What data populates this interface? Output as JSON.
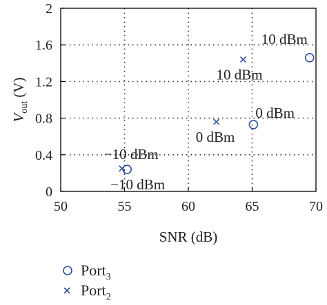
{
  "chart_data": {
    "type": "scatter",
    "xlabel": "SNR (dB)",
    "ylabel_main": "V",
    "ylabel_sub": "out",
    "ylabel_unit": " (V)",
    "xlim": [
      50,
      70
    ],
    "ylim": [
      0,
      2
    ],
    "xticks": [
      "50",
      "55",
      "60",
      "65",
      "70"
    ],
    "yticks": [
      "0",
      "0.4",
      "0.8",
      "1.2",
      "1.6",
      "2"
    ],
    "x_grid_values": [
      55,
      60,
      65
    ],
    "y_grid_values": [
      0.4,
      0.8,
      1.2,
      1.6
    ],
    "grid": true,
    "legend_position": "below",
    "series": [
      {
        "legend_main": "Port",
        "legend_sub": "3",
        "marker": "circle",
        "color": "#2f4fa0",
        "x": [
          55.2,
          65.1,
          69.5
        ],
        "y": [
          0.24,
          0.73,
          1.46
        ],
        "labels": [
          "−10 dBm",
          "0 dBm",
          "10 dBm"
        ]
      },
      {
        "legend_main": "Port",
        "legend_sub": "2",
        "marker": "x",
        "color": "#2f4fa0",
        "x": [
          54.8,
          62.2,
          64.3
        ],
        "y": [
          0.25,
          0.76,
          1.44
        ],
        "labels": [
          "−10 dBm",
          "0 dBm",
          "10 dBm"
        ]
      }
    ]
  }
}
